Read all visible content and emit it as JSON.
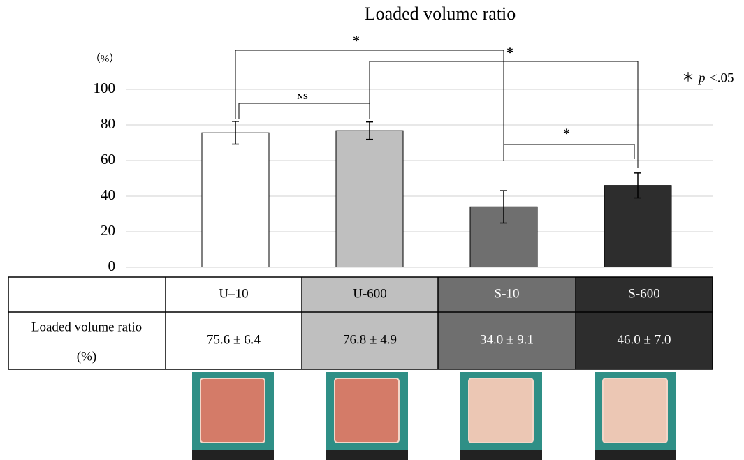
{
  "chart_data": {
    "type": "bar",
    "title": "Loaded volume ratio",
    "y_unit": "（%）",
    "categories": [
      "U–10",
      "U-600",
      "S-10",
      "S-600"
    ],
    "values": [
      75.6,
      76.8,
      34.0,
      46.0
    ],
    "errors": [
      6.4,
      4.9,
      9.1,
      7.0
    ],
    "value_labels": [
      "75.6 ± 6.4",
      "76.8 ± 4.9",
      "34.0 ± 9.1",
      "46.0 ± 7.0"
    ],
    "colors": [
      "#ffffff",
      "#bfbfbf",
      "#6f6f6f",
      "#2d2d2d"
    ],
    "ylim": [
      0,
      100
    ],
    "yticks": [
      0,
      20,
      40,
      60,
      80,
      100
    ],
    "grid": true,
    "row_label": [
      "Loaded volume ratio",
      "(%)"
    ],
    "annotations": [
      "*",
      "*",
      "NS",
      "*"
    ],
    "note": {
      "symbol": "＊",
      "p": "p",
      "threshold": "<.05"
    }
  }
}
